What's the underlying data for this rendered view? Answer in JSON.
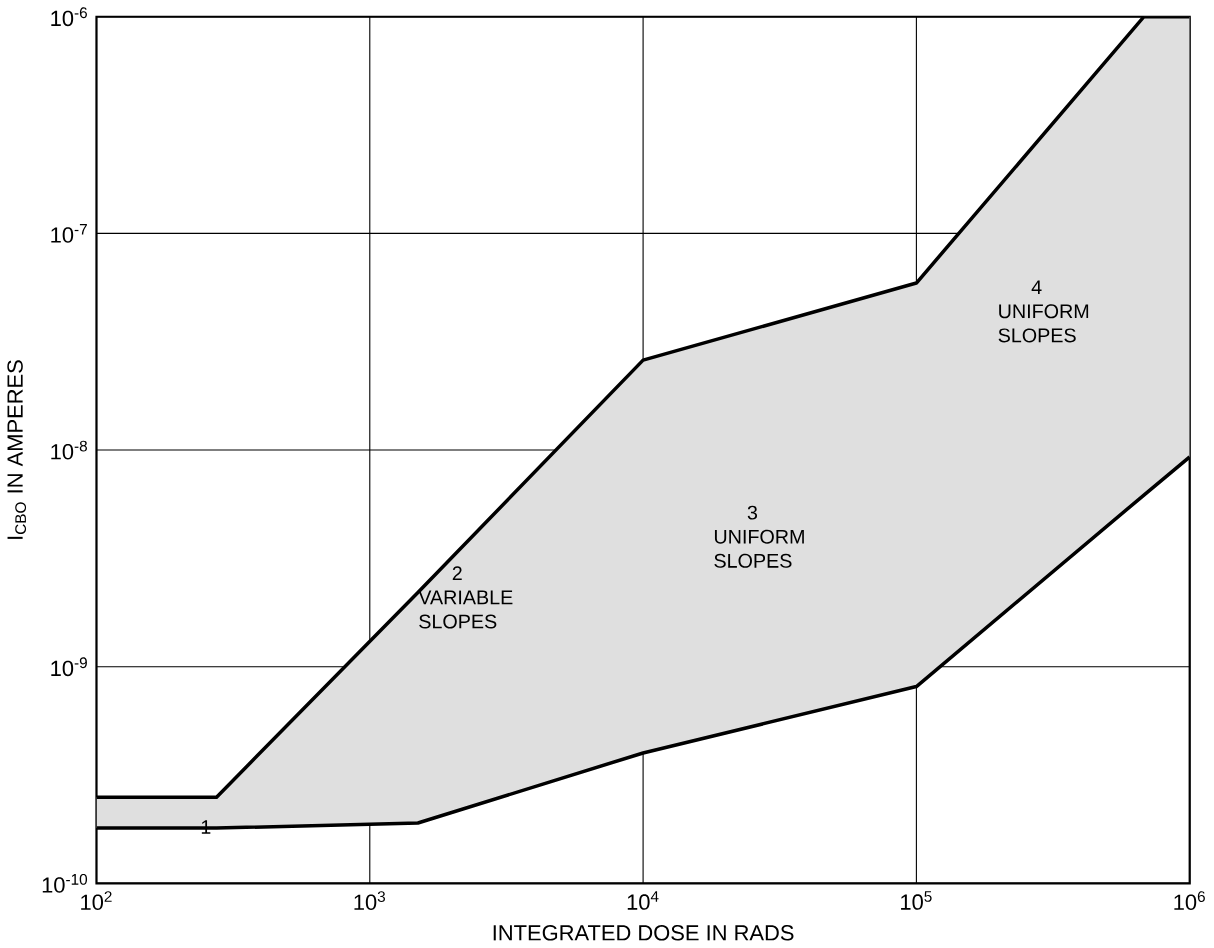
{
  "chart_data": {
    "type": "line",
    "xlabel": "INTEGRATED DOSE IN RADS",
    "ylabel": "I$_{CBO}$ IN AMPERES",
    "log": "xy",
    "grid": true,
    "marker": "none",
    "line_style": "solid",
    "xlim": [
      100,
      1000000
    ],
    "ylim": [
      1e-10,
      1e-06
    ],
    "xticks": [
      {
        "value": 100,
        "label": "10$^{2}$"
      },
      {
        "value": 1000,
        "label": "10$^{3}$"
      },
      {
        "value": 10000,
        "label": "10$^{4}$"
      },
      {
        "value": 100000,
        "label": "10$^{5}$"
      },
      {
        "value": 1000000,
        "label": "10$^{6}$"
      }
    ],
    "yticks": [
      {
        "value": 1e-10,
        "label": "10$^{-10}$"
      },
      {
        "value": 1e-09,
        "label": "10$^{-9}$"
      },
      {
        "value": 1e-08,
        "label": "10$^{-8}$"
      },
      {
        "value": 1e-07,
        "label": "10$^{-7}$"
      },
      {
        "value": 1e-06,
        "label": "10$^{-6}$"
      }
    ],
    "series": [
      {
        "color": "#000000",
        "x": [
          100,
          275,
          1500,
          10000,
          100000,
          680000,
          1000000
        ],
        "values": [
          2.5e-10,
          2.5e-10,
          2.2e-09,
          2.6e-08,
          5.9e-08,
          1e-06,
          1e-06
        ],
        "lower": [
          1.8e-10,
          1.8e-10,
          1.9e-10,
          4e-10,
          8.1e-10,
          6.2e-09,
          9.3e-09
        ],
        "upper": [
          2.5e-10,
          2.5e-10,
          2.2e-09,
          2.6e-08,
          5.9e-08,
          1e-06,
          1e-06
        ]
      },
      {
        "color": "#000000",
        "x": [
          100,
          275,
          1500,
          10000,
          100000,
          680000,
          1000000
        ],
        "values": [
          1.8e-10,
          1.8e-10,
          1.9e-10,
          4e-10,
          8.1e-10,
          6.2e-09,
          9.3e-09
        ]
      }
    ],
    "annotations": [
      "1",
      "2 VARIABLE SLOPES",
      "3 UNIFORM SLOPES",
      "4 UNIFORM SLOPES"
    ]
  }
}
